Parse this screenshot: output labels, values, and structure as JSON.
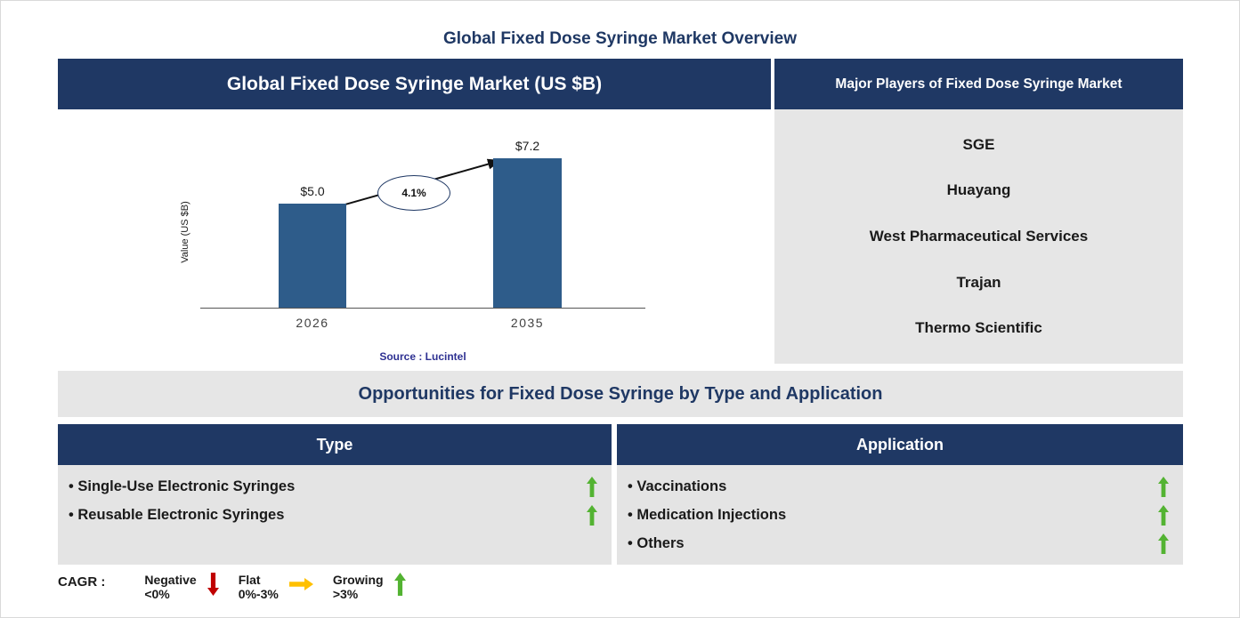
{
  "page_title": "Global Fixed Dose Syringe Market Overview",
  "market_panel": {
    "header": "Global Fixed Dose Syringe Market (US $B)",
    "source": "Source : Lucintel"
  },
  "chart_data": {
    "type": "bar",
    "title": "Global Fixed Dose Syringe Market (US $B)",
    "categories": [
      "2026",
      "2035"
    ],
    "values": [
      5.0,
      7.2
    ],
    "bar_labels": [
      "$5.0",
      "$7.2"
    ],
    "ylabel": "Value (US $B)",
    "xlabel": "",
    "ylim": [
      0,
      8
    ],
    "annotation": "4.1%",
    "annotation_meaning": "CAGR from 2026 to 2035",
    "bar_color": "#2E5C8A",
    "grid": false,
    "legend_position": "none"
  },
  "players_panel": {
    "header": "Major Players of Fixed Dose Syringe Market",
    "players": [
      "SGE",
      "Huayang",
      "West Pharmaceutical Services",
      "Trajan",
      "Thermo Scientific"
    ]
  },
  "opportunities": {
    "title": "Opportunities for Fixed Dose Syringe by Type and Application",
    "type_panel": {
      "header": "Type",
      "items": [
        {
          "label": "Single-Use Electronic Syringes",
          "trend": "growing"
        },
        {
          "label": "Reusable Electronic Syringes",
          "trend": "growing"
        }
      ]
    },
    "application_panel": {
      "header": "Application",
      "items": [
        {
          "label": "Vaccinations",
          "trend": "growing"
        },
        {
          "label": "Medication Injections",
          "trend": "growing"
        },
        {
          "label": "Others",
          "trend": "growing"
        }
      ]
    }
  },
  "cagr_legend": {
    "label": "CAGR :",
    "items": [
      {
        "name": "Negative",
        "range": "<0%",
        "direction": "down",
        "color": "#C00000"
      },
      {
        "name": "Flat",
        "range": "0%-3%",
        "direction": "right",
        "color": "#FFC000"
      },
      {
        "name": "Growing",
        "range": ">3%",
        "direction": "up",
        "color": "#53B332"
      }
    ]
  },
  "colors": {
    "navy": "#1F3864",
    "bar_blue": "#2E5C8A",
    "panel_gray": "#E6E6E6",
    "growing_green": "#53B332",
    "negative_red": "#C00000",
    "flat_yellow": "#FFC000",
    "source_blue": "#2E3192"
  }
}
